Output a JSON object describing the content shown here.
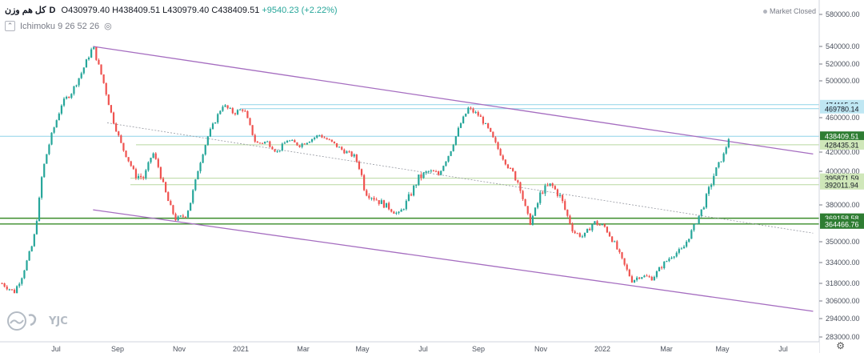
{
  "header": {
    "symbol": "کل هم وزن",
    "timeframe": "D",
    "open_label": "O",
    "open": "430979.40",
    "high_label": "H",
    "high": "438409.51",
    "low_label": "L",
    "low": "430979.40",
    "close_label": "C",
    "close": "438409.51",
    "change": "+9540.23 (+2.22%)",
    "indicator": "Ichimoku 9 26 52 26",
    "market_status": "Market Closed"
  },
  "watermark": {
    "text": "YJC"
  },
  "colors": {
    "up": "#26a69a",
    "down": "#ef5350",
    "channel": "#a56dc0",
    "midline": "#9598a1",
    "support_light": "#b8d8a0",
    "support_dark": "#3a8c2a",
    "resistance": "#8fd3e8",
    "price_tag": "#2e7d32"
  },
  "chart_data": {
    "type": "candlestick",
    "x_ticks": [
      "Jul",
      "Sep",
      "Nov",
      "2021",
      "Mar",
      "May",
      "Jul",
      "Sep",
      "Nov",
      "2022",
      "Mar",
      "May",
      "Jul"
    ],
    "y_ticks": [
      "580000.00",
      "540000.00",
      "520000.00",
      "500000.00",
      "460000.00",
      "420000.00",
      "400000.00",
      "380000.00",
      "350000.00",
      "334000.00",
      "318000.00",
      "306000.00",
      "294000.00",
      "283000.00"
    ],
    "y_axis_labels": {
      "580000.00": 580000,
      "540000.00": 540000,
      "520000.00": 520000,
      "500000.00": 500000,
      "460000.00": 460000,
      "420000.00": 420000,
      "400000.00": 400000,
      "380000.00": 380000,
      "350000.00": 350000,
      "334000.00": 334000,
      "318000.00": 318000,
      "306000.00": 306000,
      "294000.00": 294000,
      "283000.00": 283000
    },
    "price_levels": [
      {
        "label": "474115.62",
        "value": 474115.62,
        "kind": "resistance"
      },
      {
        "label": "469780.14",
        "value": 469780.14,
        "kind": "resistance"
      },
      {
        "label": "438409.51",
        "value": 438409.51,
        "kind": "last"
      },
      {
        "label": "428435.31",
        "value": 428435.31,
        "kind": "support"
      },
      {
        "label": "395871.59",
        "value": 395871.59,
        "kind": "support"
      },
      {
        "label": "392011.94",
        "value": 392011.94,
        "kind": "support"
      },
      {
        "label": "369158.58",
        "value": 369158.58,
        "kind": "strong"
      },
      {
        "label": "364466.76",
        "value": 364466.76,
        "kind": "strong"
      }
    ],
    "series_close": [
      {
        "t": "2020-05-20",
        "v": 318000
      },
      {
        "t": "2020-06-01",
        "v": 312000
      },
      {
        "t": "2020-06-08",
        "v": 322000
      },
      {
        "t": "2020-06-20",
        "v": 350000
      },
      {
        "t": "2020-06-28",
        "v": 395000
      },
      {
        "t": "2020-07-08",
        "v": 440000
      },
      {
        "t": "2020-07-18",
        "v": 475000
      },
      {
        "t": "2020-07-28",
        "v": 488000
      },
      {
        "t": "2020-08-06",
        "v": 508000
      },
      {
        "t": "2020-08-14",
        "v": 530000
      },
      {
        "t": "2020-08-18",
        "v": 540000
      },
      {
        "t": "2020-08-28",
        "v": 500000
      },
      {
        "t": "2020-09-06",
        "v": 460000
      },
      {
        "t": "2020-09-16",
        "v": 425000
      },
      {
        "t": "2020-09-28",
        "v": 398000
      },
      {
        "t": "2020-10-08",
        "v": 396000
      },
      {
        "t": "2020-10-16",
        "v": 420000
      },
      {
        "t": "2020-10-26",
        "v": 392000
      },
      {
        "t": "2020-11-08",
        "v": 368000
      },
      {
        "t": "2020-11-18",
        "v": 372000
      },
      {
        "t": "2020-11-28",
        "v": 395000
      },
      {
        "t": "2020-12-10",
        "v": 440000
      },
      {
        "t": "2020-12-24",
        "v": 474000
      },
      {
        "t": "2021-01-04",
        "v": 465000
      },
      {
        "t": "2021-01-14",
        "v": 470000
      },
      {
        "t": "2021-01-26",
        "v": 430000
      },
      {
        "t": "2021-02-06",
        "v": 432000
      },
      {
        "t": "2021-02-16",
        "v": 420000
      },
      {
        "t": "2021-02-26",
        "v": 434000
      },
      {
        "t": "2021-03-10",
        "v": 428000
      },
      {
        "t": "2021-03-20",
        "v": 434000
      },
      {
        "t": "2021-03-30",
        "v": 440000
      },
      {
        "t": "2021-04-10",
        "v": 432000
      },
      {
        "t": "2021-04-22",
        "v": 422000
      },
      {
        "t": "2021-05-04",
        "v": 415000
      },
      {
        "t": "2021-05-14",
        "v": 388000
      },
      {
        "t": "2021-05-26",
        "v": 383000
      },
      {
        "t": "2021-06-06",
        "v": 378000
      },
      {
        "t": "2021-06-16",
        "v": 372000
      },
      {
        "t": "2021-06-26",
        "v": 384000
      },
      {
        "t": "2021-07-06",
        "v": 396000
      },
      {
        "t": "2021-07-16",
        "v": 400000
      },
      {
        "t": "2021-07-26",
        "v": 398000
      },
      {
        "t": "2021-08-06",
        "v": 420000
      },
      {
        "t": "2021-08-16",
        "v": 452000
      },
      {
        "t": "2021-08-24",
        "v": 470000
      },
      {
        "t": "2021-09-04",
        "v": 462000
      },
      {
        "t": "2021-09-14",
        "v": 444000
      },
      {
        "t": "2021-09-24",
        "v": 420000
      },
      {
        "t": "2021-10-04",
        "v": 402000
      },
      {
        "t": "2021-10-14",
        "v": 392000
      },
      {
        "t": "2021-10-24",
        "v": 365000
      },
      {
        "t": "2021-11-04",
        "v": 388000
      },
      {
        "t": "2021-11-14",
        "v": 392000
      },
      {
        "t": "2021-11-24",
        "v": 384000
      },
      {
        "t": "2021-12-06",
        "v": 358000
      },
      {
        "t": "2021-12-16",
        "v": 354000
      },
      {
        "t": "2021-12-26",
        "v": 366000
      },
      {
        "t": "2022-01-06",
        "v": 362000
      },
      {
        "t": "2022-01-16",
        "v": 348000
      },
      {
        "t": "2022-01-24",
        "v": 334000
      },
      {
        "t": "2022-02-02",
        "v": 320000
      },
      {
        "t": "2022-02-10",
        "v": 324000
      },
      {
        "t": "2022-02-22",
        "v": 322000
      },
      {
        "t": "2022-03-04",
        "v": 332000
      },
      {
        "t": "2022-03-14",
        "v": 340000
      },
      {
        "t": "2022-03-24",
        "v": 344000
      },
      {
        "t": "2022-04-04",
        "v": 362000
      },
      {
        "t": "2022-04-14",
        "v": 380000
      },
      {
        "t": "2022-04-24",
        "v": 398000
      },
      {
        "t": "2022-05-04",
        "v": 418000
      },
      {
        "t": "2022-05-09",
        "v": 438409.51
      }
    ],
    "trendlines": [
      {
        "name": "upper-channel",
        "from": {
          "t": "2020-08-18",
          "v": 540000
        },
        "to": {
          "t": "2022-07-31",
          "v": 418000
        }
      },
      {
        "name": "lower-channel",
        "from": {
          "t": "2020-08-18",
          "v": 376000
        },
        "to": {
          "t": "2022-07-31",
          "v": 299000
        }
      },
      {
        "name": "mid-channel",
        "from": {
          "t": "2020-09-01",
          "v": 454000
        },
        "to": {
          "t": "2022-07-31",
          "v": 357000
        }
      }
    ]
  }
}
